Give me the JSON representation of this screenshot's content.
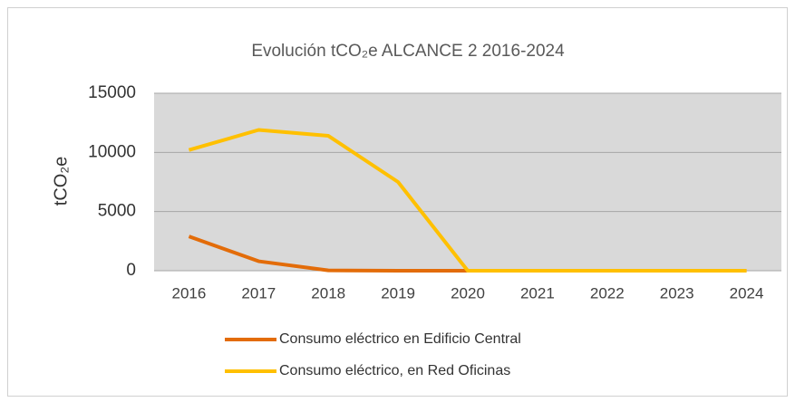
{
  "chart_data": {
    "type": "line",
    "title": "Evolución tCO₂e ALCANCE 2 2016-2024",
    "ylabel": "tCO₂e",
    "categories": [
      "2016",
      "2017",
      "2018",
      "2019",
      "2020",
      "2021",
      "2022",
      "2023",
      "2024"
    ],
    "series": [
      {
        "name": "Consumo eléctrico en Edificio Central",
        "color": "#e36c09",
        "values": [
          2900,
          800,
          30,
          0,
          0,
          0,
          0,
          0,
          0
        ]
      },
      {
        "name": "Consumo eléctrico, en Red Oficinas",
        "color": "#ffc000",
        "values": [
          10200,
          11900,
          11400,
          7500,
          0,
          0,
          0,
          0,
          0
        ]
      }
    ],
    "ylim": [
      0,
      15000
    ],
    "yticks": [
      0,
      5000,
      10000,
      15000
    ],
    "grid": true,
    "legend": "bottom"
  }
}
